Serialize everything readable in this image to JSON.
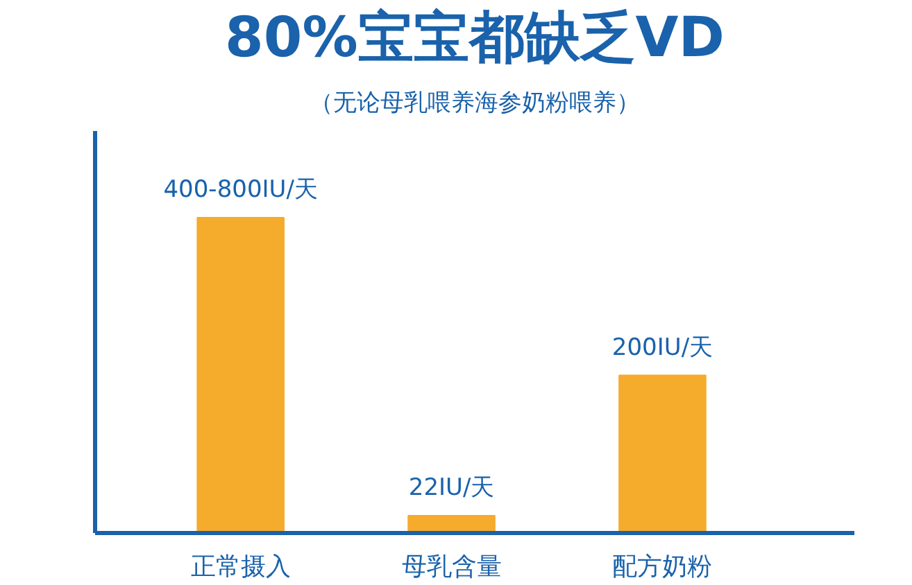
{
  "chart_data": {
    "type": "bar",
    "title": "80%宝宝都缺乏VD",
    "subtitle": "（无论母乳喂养海参奶粉喂养）",
    "categories": [
      "正常摄入",
      "母乳含量",
      "配方奶粉"
    ],
    "values": [
      400,
      22,
      200
    ],
    "value_labels": [
      "400-800IU/天",
      "22IU/天",
      "200IU/天"
    ],
    "color": "#f5ab2c",
    "ylim": [
      0,
      510
    ],
    "tick_labels": "x",
    "grid": false
  }
}
